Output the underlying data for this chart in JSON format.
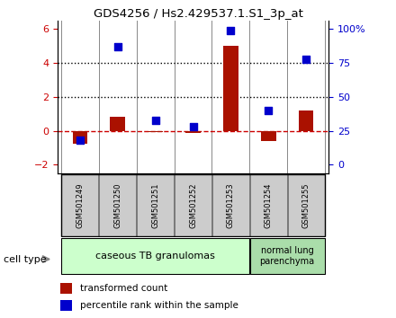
{
  "title": "GDS4256 / Hs2.429537.1.S1_3p_at",
  "samples": [
    "GSM501249",
    "GSM501250",
    "GSM501251",
    "GSM501252",
    "GSM501253",
    "GSM501254",
    "GSM501255"
  ],
  "transformed_count": [
    -0.75,
    0.85,
    -0.05,
    -0.1,
    5.0,
    -0.6,
    1.2
  ],
  "percentile_rank": [
    18,
    87,
    33,
    28,
    99,
    40,
    78
  ],
  "ylim_left": [
    -2.5,
    6.5
  ],
  "yticks_left": [
    -2,
    0,
    2,
    4,
    6
  ],
  "yticks_right": [
    0,
    25,
    50,
    75,
    100
  ],
  "ytick_labels_right": [
    "0",
    "25",
    "50",
    "75",
    "100%"
  ],
  "bar_color": "#aa1100",
  "dot_color": "#0000cc",
  "dotted_line_color": "#000000",
  "zero_line_color": "#cc0000",
  "group1_samples": [
    0,
    1,
    2,
    3,
    4
  ],
  "group2_samples": [
    5,
    6
  ],
  "group1_label": "caseous TB granulomas",
  "group2_label": "normal lung\nparenchyma",
  "group1_color": "#ccffcc",
  "group2_color": "#aaddaa",
  "cell_type_label": "cell type",
  "legend_bar_label": "transformed count",
  "legend_dot_label": "percentile rank within the sample",
  "tick_color_left": "#cc0000",
  "tick_color_right": "#0000cc",
  "label_box_color": "#cccccc",
  "bar_width": 0.4,
  "dot_size": 40
}
